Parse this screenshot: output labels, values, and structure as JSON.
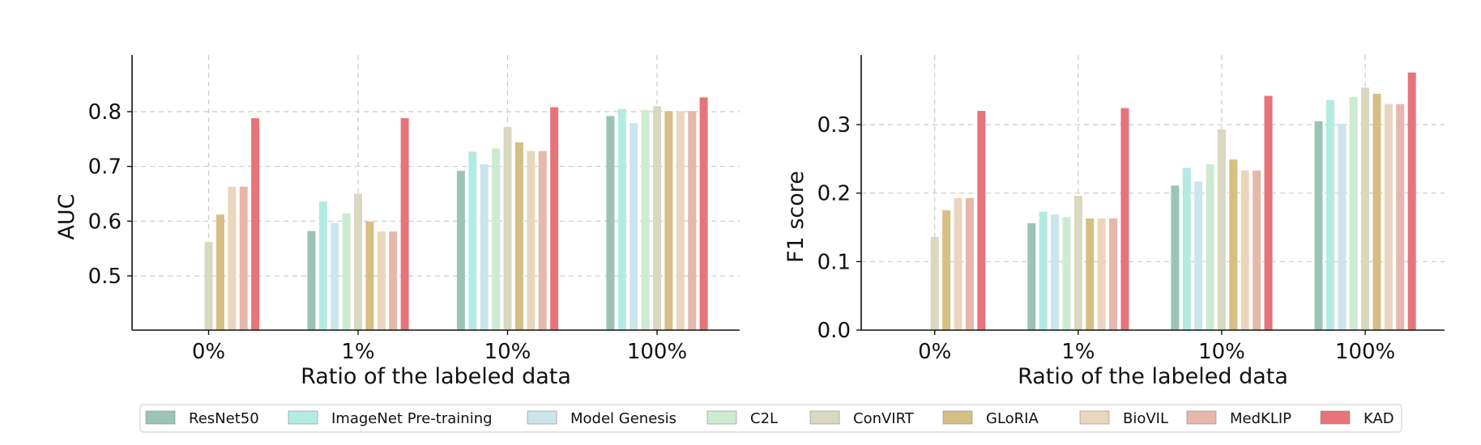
{
  "chart_data": [
    {
      "type": "bar",
      "xlabel": "Ratio of the labeled data",
      "ylabel": "AUC",
      "ylim": [
        0.4,
        0.9
      ],
      "yticks": [
        0.5,
        0.6,
        0.7,
        0.8
      ],
      "ytick_labels": [
        "0.5",
        "0.6",
        "0.7",
        "0.8"
      ],
      "grid": true,
      "categories": [
        "0%",
        "1%",
        "10%",
        "100%"
      ],
      "series": [
        {
          "name": "ResNet50",
          "values": [
            null,
            0.582,
            0.692,
            0.792
          ]
        },
        {
          "name": "ImageNet Pre-training",
          "values": [
            null,
            0.636,
            0.727,
            0.805
          ]
        },
        {
          "name": "Model Genesis",
          "values": [
            null,
            0.597,
            0.704,
            0.779
          ]
        },
        {
          "name": "C2L",
          "values": [
            null,
            0.614,
            0.733,
            0.803
          ]
        },
        {
          "name": "ConVIRT",
          "values": [
            0.562,
            0.65,
            0.772,
            0.81
          ]
        },
        {
          "name": "GLoRIA",
          "values": [
            0.612,
            0.599,
            0.744,
            0.801
          ]
        },
        {
          "name": "BioVIL",
          "values": [
            0.663,
            0.581,
            0.728,
            0.801
          ]
        },
        {
          "name": "MedKLIP",
          "values": [
            0.663,
            0.581,
            0.728,
            0.801
          ]
        },
        {
          "name": "KAD",
          "values": [
            0.788,
            0.788,
            0.808,
            0.826
          ]
        }
      ]
    },
    {
      "type": "bar",
      "xlabel": "Ratio of the labeled data",
      "ylabel": "F1 score",
      "ylim": [
        0.0,
        0.4
      ],
      "yticks": [
        0.0,
        0.1,
        0.2,
        0.3
      ],
      "ytick_labels": [
        "0.0",
        "0.1",
        "0.2",
        "0.3"
      ],
      "grid": true,
      "categories": [
        "0%",
        "1%",
        "10%",
        "100%"
      ],
      "series": [
        {
          "name": "ResNet50",
          "values": [
            null,
            0.156,
            0.211,
            0.305
          ]
        },
        {
          "name": "ImageNet Pre-training",
          "values": [
            null,
            0.173,
            0.237,
            0.336
          ]
        },
        {
          "name": "Model Genesis",
          "values": [
            null,
            0.169,
            0.217,
            0.301
          ]
        },
        {
          "name": "C2L",
          "values": [
            null,
            0.165,
            0.242,
            0.34
          ]
        },
        {
          "name": "ConVIRT",
          "values": [
            0.136,
            0.196,
            0.293,
            0.354
          ]
        },
        {
          "name": "GLoRIA",
          "values": [
            0.175,
            0.163,
            0.249,
            0.345
          ]
        },
        {
          "name": "BioVIL",
          "values": [
            0.193,
            0.163,
            0.233,
            0.33
          ]
        },
        {
          "name": "MedKLIP",
          "values": [
            0.193,
            0.163,
            0.233,
            0.33
          ]
        },
        {
          "name": "KAD",
          "values": [
            0.32,
            0.324,
            0.342,
            0.376
          ]
        }
      ]
    }
  ],
  "legend": {
    "placement": "bottom",
    "items": [
      {
        "name": "ResNet50",
        "color": "#9cc4b5"
      },
      {
        "name": "ImageNet Pre-training",
        "color": "#b2ebe2"
      },
      {
        "name": "Model Genesis",
        "color": "#cbe5ec"
      },
      {
        "name": "C2L",
        "color": "#cdebd0"
      },
      {
        "name": "ConVIRT",
        "color": "#d9d8c0"
      },
      {
        "name": "GLoRIA",
        "color": "#d6bf84"
      },
      {
        "name": "BioVIL",
        "color": "#ead6bd"
      },
      {
        "name": "MedKLIP",
        "color": "#e7b7ab"
      },
      {
        "name": "KAD",
        "color": "#e67479"
      }
    ]
  }
}
